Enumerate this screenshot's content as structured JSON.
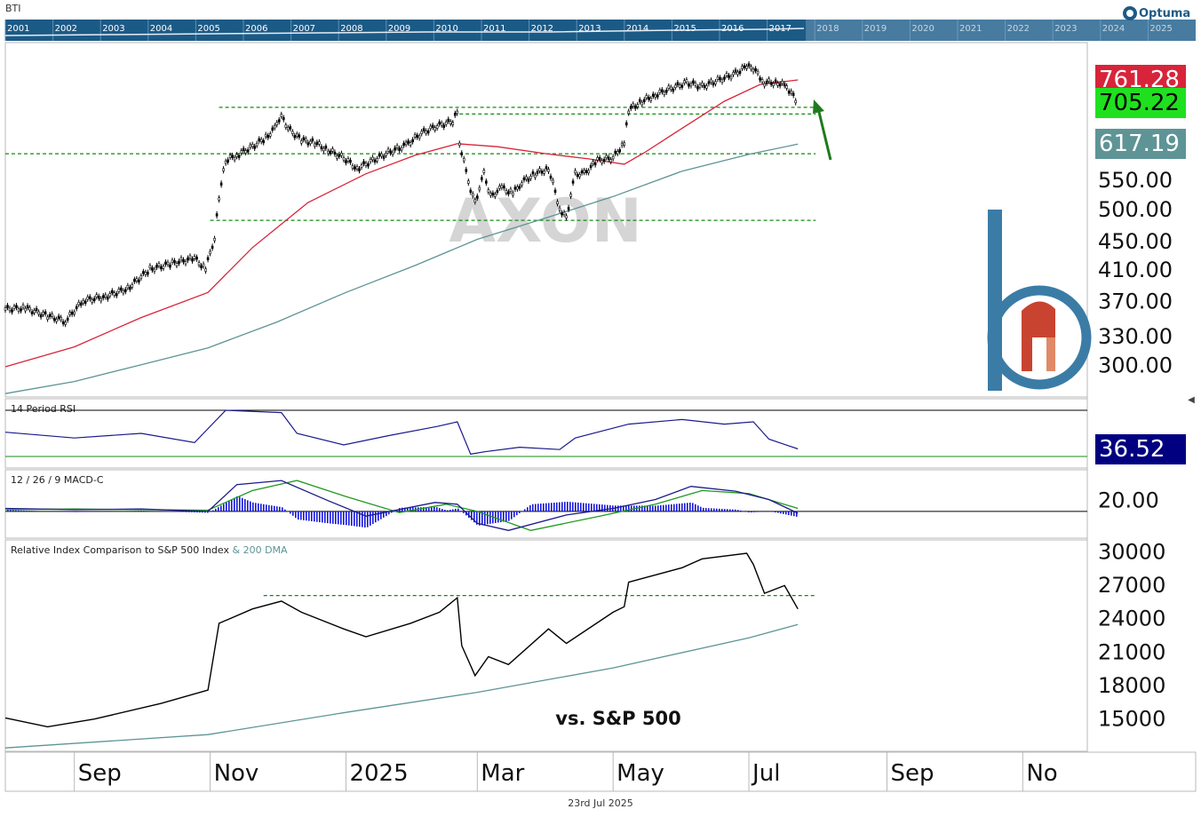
{
  "header": {
    "symbol_label": "BTI",
    "provider_logo": "Optuma",
    "overview_years": [
      "2001",
      "2002",
      "2003",
      "2004",
      "2005",
      "2006",
      "2007",
      "2008",
      "2009",
      "2010",
      "2011",
      "2012",
      "2013",
      "2014",
      "2015",
      "2016",
      "2017",
      "2018",
      "2019",
      "2020",
      "2021",
      "2022",
      "2023",
      "2024",
      "2025"
    ]
  },
  "footer": {
    "date": "23rd Jul 2025"
  },
  "watermark": "AXON",
  "price_badges": {
    "ma50": {
      "value": "761.28",
      "color": "#d8243a"
    },
    "last": {
      "value": "705.22",
      "color": "#1fe01f"
    },
    "ma200": {
      "value": "617.19",
      "color": "#5e9496"
    }
  },
  "rsi_badge": {
    "value": "36.52",
    "color": "#000080"
  },
  "colors": {
    "price": "#000000",
    "ma50": "#d8243a",
    "ma200": "#5e9496",
    "support": "#138a13",
    "rsi": "#1a1a8c",
    "macd": "#1a1a8c",
    "signal": "#1f9a1f",
    "histogram": "#1515d8",
    "arrow": "#1f7a1f"
  },
  "x_axis": {
    "labels": [
      "Sep",
      "Nov",
      "2025",
      "Mar",
      "May",
      "Jul",
      "Sep",
      "No"
    ]
  },
  "chart_data": [
    {
      "type": "line",
      "panel": "price",
      "title": "",
      "y_ticks": [
        "550.00",
        "500.00",
        "450.00",
        "410.00",
        "370.00",
        "330.00",
        "300.00"
      ],
      "ylim": [
        270,
        860
      ],
      "y_scale": "log",
      "x_range": [
        "2024-08-01",
        "2025-11-30"
      ],
      "series": [
        {
          "role": "price",
          "points": [
            [
              "2024-08-01",
              360
            ],
            [
              "2024-08-10",
              361
            ],
            [
              "2024-08-20",
              352
            ],
            [
              "2024-08-28",
              346
            ],
            [
              "2024-09-05",
              370
            ],
            [
              "2024-09-15",
              375
            ],
            [
              "2024-09-25",
              385
            ],
            [
              "2024-10-05",
              410
            ],
            [
              "2024-10-15",
              418
            ],
            [
              "2024-10-25",
              425
            ],
            [
              "2024-10-30",
              410
            ],
            [
              "2024-11-03",
              455
            ],
            [
              "2024-11-05",
              520
            ],
            [
              "2024-11-08",
              585
            ],
            [
              "2024-11-13",
              595
            ],
            [
              "2024-11-20",
              612
            ],
            [
              "2024-11-26",
              630
            ],
            [
              "2024-12-01",
              655
            ],
            [
              "2024-12-03",
              675
            ],
            [
              "2024-12-06",
              650
            ],
            [
              "2024-12-12",
              625
            ],
            [
              "2024-12-18",
              620
            ],
            [
              "2024-12-24",
              605
            ],
            [
              "2024-12-31",
              590
            ],
            [
              "2025-01-06",
              570
            ],
            [
              "2025-01-13",
              585
            ],
            [
              "2025-01-20",
              600
            ],
            [
              "2025-01-28",
              615
            ],
            [
              "2025-02-04",
              640
            ],
            [
              "2025-02-11",
              655
            ],
            [
              "2025-02-18",
              665
            ],
            [
              "2025-02-20",
              690
            ],
            [
              "2025-02-21",
              620
            ],
            [
              "2025-02-25",
              545
            ],
            [
              "2025-02-28",
              510
            ],
            [
              "2025-03-04",
              560
            ],
            [
              "2025-03-07",
              520
            ],
            [
              "2025-03-12",
              535
            ],
            [
              "2025-03-17",
              525
            ],
            [
              "2025-03-21",
              545
            ],
            [
              "2025-03-27",
              560
            ],
            [
              "2025-04-02",
              570
            ],
            [
              "2025-04-07",
              500
            ],
            [
              "2025-04-10",
              485
            ],
            [
              "2025-04-14",
              560
            ],
            [
              "2025-04-18",
              560
            ],
            [
              "2025-04-24",
              585
            ],
            [
              "2025-05-01",
              590
            ],
            [
              "2025-05-06",
              620
            ],
            [
              "2025-05-08",
              690
            ],
            [
              "2025-05-14",
              710
            ],
            [
              "2025-05-20",
              725
            ],
            [
              "2025-05-27",
              740
            ],
            [
              "2025-06-03",
              755
            ],
            [
              "2025-06-10",
              745
            ],
            [
              "2025-06-17",
              760
            ],
            [
              "2025-06-24",
              775
            ],
            [
              "2025-06-30",
              795
            ],
            [
              "2025-07-03",
              790
            ],
            [
              "2025-07-08",
              755
            ],
            [
              "2025-07-14",
              755
            ],
            [
              "2025-07-18",
              745
            ],
            [
              "2025-07-23",
              705
            ]
          ]
        },
        {
          "role": "ma50",
          "points": [
            [
              "2024-08-01",
              298
            ],
            [
              "2024-09-01",
              318
            ],
            [
              "2024-10-01",
              350
            ],
            [
              "2024-10-31",
              380
            ],
            [
              "2024-11-20",
              440
            ],
            [
              "2024-12-15",
              510
            ],
            [
              "2025-01-10",
              560
            ],
            [
              "2025-02-01",
              595
            ],
            [
              "2025-02-20",
              618
            ],
            [
              "2025-03-10",
              612
            ],
            [
              "2025-04-01",
              598
            ],
            [
              "2025-04-20",
              588
            ],
            [
              "2025-05-06",
              578
            ],
            [
              "2025-05-15",
              600
            ],
            [
              "2025-06-01",
              650
            ],
            [
              "2025-06-20",
              710
            ],
            [
              "2025-07-06",
              750
            ],
            [
              "2025-07-23",
              761.28
            ]
          ]
        },
        {
          "role": "ma200",
          "points": [
            [
              "2024-08-01",
              273
            ],
            [
              "2024-09-01",
              284
            ],
            [
              "2024-10-01",
              300
            ],
            [
              "2024-10-31",
              317
            ],
            [
              "2024-12-01",
              345
            ],
            [
              "2025-01-01",
              380
            ],
            [
              "2025-02-01",
              415
            ],
            [
              "2025-03-01",
              452
            ],
            [
              "2025-04-01",
              485
            ],
            [
              "2025-05-01",
              520
            ],
            [
              "2025-06-01",
              565
            ],
            [
              "2025-07-01",
              597
            ],
            [
              "2025-07-23",
              617.19
            ]
          ]
        }
      ],
      "support_levels": [
        {
          "value": 696,
          "from": "2024-11-05",
          "to": "2025-07-31"
        },
        {
          "value": 681,
          "from": "2025-02-21",
          "to": "2025-07-31"
        },
        {
          "value": 598,
          "from": "2024-08-01",
          "to": "2025-07-31"
        },
        {
          "value": 481,
          "from": "2024-11-01",
          "to": "2025-07-31"
        }
      ]
    },
    {
      "type": "line",
      "panel": "rsi",
      "title": "14 Period RSI",
      "ylim": [
        20,
        80
      ],
      "reference_lines": [
        70,
        30
      ],
      "points": [
        [
          "2024-08-01",
          51
        ],
        [
          "2024-09-01",
          46
        ],
        [
          "2024-10-01",
          50
        ],
        [
          "2024-10-25",
          42
        ],
        [
          "2024-11-08",
          70
        ],
        [
          "2024-12-03",
          68
        ],
        [
          "2024-12-10",
          50
        ],
        [
          "2024-12-31",
          40
        ],
        [
          "2025-01-20",
          48
        ],
        [
          "2025-02-11",
          56
        ],
        [
          "2025-02-20",
          60
        ],
        [
          "2025-02-26",
          32
        ],
        [
          "2025-03-04",
          34
        ],
        [
          "2025-03-20",
          38
        ],
        [
          "2025-04-07",
          36
        ],
        [
          "2025-04-14",
          46
        ],
        [
          "2025-05-08",
          58
        ],
        [
          "2025-06-01",
          62
        ],
        [
          "2025-06-20",
          58
        ],
        [
          "2025-07-03",
          60
        ],
        [
          "2025-07-10",
          45
        ],
        [
          "2025-07-23",
          36.52
        ]
      ]
    },
    {
      "type": "line",
      "panel": "macd",
      "title": "12 / 26 / 9 MACD-C",
      "y_ticks": [
        "20.00"
      ],
      "ylim": [
        -45,
        70
      ],
      "series": [
        {
          "role": "macd",
          "points": [
            [
              "2024-08-01",
              5
            ],
            [
              "2024-09-01",
              3
            ],
            [
              "2024-10-01",
              4
            ],
            [
              "2024-10-31",
              0
            ],
            [
              "2024-11-13",
              45
            ],
            [
              "2024-12-03",
              52
            ],
            [
              "2024-12-24",
              18
            ],
            [
              "2025-01-10",
              -8
            ],
            [
              "2025-02-10",
              15
            ],
            [
              "2025-02-20",
              12
            ],
            [
              "2025-03-01",
              -20
            ],
            [
              "2025-03-15",
              -32
            ],
            [
              "2025-04-10",
              -6
            ],
            [
              "2025-05-01",
              5
            ],
            [
              "2025-05-20",
              20
            ],
            [
              "2025-06-05",
              42
            ],
            [
              "2025-06-25",
              34
            ],
            [
              "2025-07-10",
              20
            ],
            [
              "2025-07-23",
              -3
            ]
          ]
        },
        {
          "role": "signal",
          "points": [
            [
              "2024-08-01",
              3
            ],
            [
              "2024-09-01",
              4
            ],
            [
              "2024-10-01",
              3
            ],
            [
              "2024-10-31",
              2
            ],
            [
              "2024-11-20",
              35
            ],
            [
              "2024-12-10",
              52
            ],
            [
              "2025-01-01",
              25
            ],
            [
              "2025-01-25",
              -2
            ],
            [
              "2025-02-15",
              12
            ],
            [
              "2025-03-01",
              0
            ],
            [
              "2025-03-25",
              -32
            ],
            [
              "2025-04-25",
              -8
            ],
            [
              "2025-05-20",
              12
            ],
            [
              "2025-06-10",
              35
            ],
            [
              "2025-07-01",
              30
            ],
            [
              "2025-07-23",
              5
            ]
          ]
        }
      ]
    },
    {
      "type": "line",
      "panel": "relative",
      "title": "Relative Index Comparison to S&P 500 Index",
      "legend_suffix": "& 200 DMA",
      "annotation": "vs. S&P 500",
      "y_ticks": [
        "30000",
        "27000",
        "24000",
        "21000",
        "18000",
        "15000"
      ],
      "ylim": [
        12000,
        31000
      ],
      "series": [
        {
          "role": "ratio",
          "points": [
            [
              "2024-08-01",
              15000
            ],
            [
              "2024-08-20",
              14200
            ],
            [
              "2024-09-10",
              14900
            ],
            [
              "2024-10-10",
              16300
            ],
            [
              "2024-10-31",
              17500
            ],
            [
              "2024-11-05",
              23500
            ],
            [
              "2024-11-20",
              24800
            ],
            [
              "2024-12-03",
              25500
            ],
            [
              "2024-12-12",
              24500
            ],
            [
              "2024-12-31",
              23000
            ],
            [
              "2025-01-10",
              22300
            ],
            [
              "2025-01-30",
              23500
            ],
            [
              "2025-02-12",
              24500
            ],
            [
              "2025-02-20",
              25800
            ],
            [
              "2025-02-22",
              21500
            ],
            [
              "2025-02-28",
              18800
            ],
            [
              "2025-03-06",
              20500
            ],
            [
              "2025-03-15",
              19800
            ],
            [
              "2025-04-02",
              23000
            ],
            [
              "2025-04-10",
              21700
            ],
            [
              "2025-05-01",
              24500
            ],
            [
              "2025-05-06",
              25000
            ],
            [
              "2025-05-08",
              27200
            ],
            [
              "2025-06-01",
              28500
            ],
            [
              "2025-06-10",
              29300
            ],
            [
              "2025-06-30",
              29800
            ],
            [
              "2025-07-03",
              28800
            ],
            [
              "2025-07-08",
              26200
            ],
            [
              "2025-07-17",
              26900
            ],
            [
              "2025-07-23",
              24800
            ]
          ]
        },
        {
          "role": "dma200",
          "points": [
            [
              "2024-08-01",
              12300
            ],
            [
              "2024-10-31",
              13500
            ],
            [
              "2025-01-01",
              15500
            ],
            [
              "2025-03-01",
              17300
            ],
            [
              "2025-05-01",
              19500
            ],
            [
              "2025-07-01",
              22200
            ],
            [
              "2025-07-23",
              23400
            ]
          ]
        }
      ],
      "support_levels": [
        {
          "value": 26000,
          "from": "2024-11-25",
          "to": "2025-07-31"
        }
      ]
    }
  ]
}
